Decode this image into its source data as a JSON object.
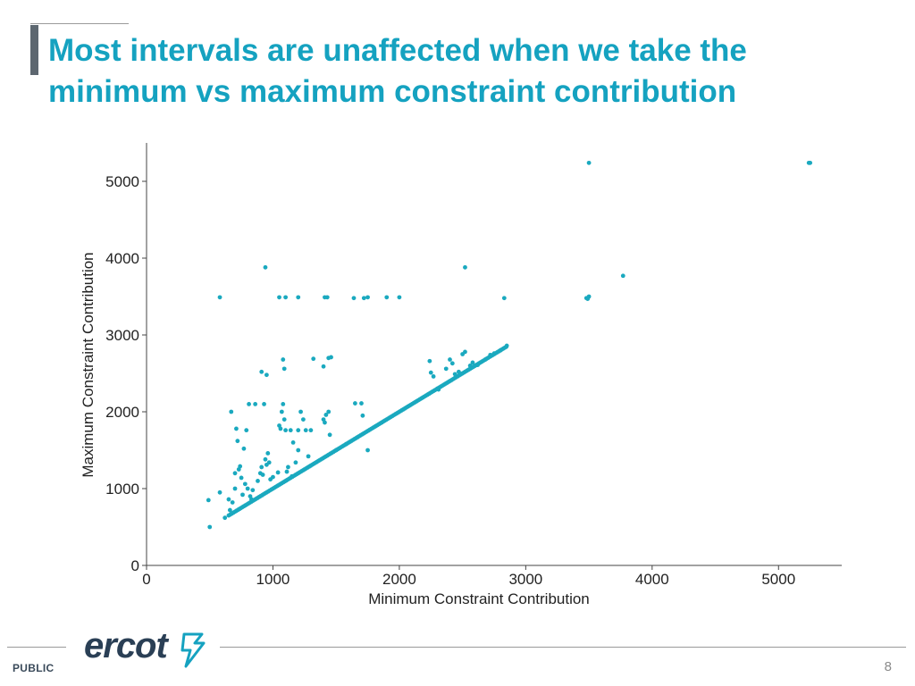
{
  "slide": {
    "title": "Most intervals are unaffected when we take the minimum vs maximum constraint contribution",
    "footer_label": "PUBLIC",
    "page_number": "8",
    "logo_text": "ercot",
    "accent_color": "#15a2c0",
    "logo_color": "#2a3f55"
  },
  "chart_data": {
    "type": "scatter",
    "title": "",
    "xlabel": "Minimum Constraint Contribution",
    "ylabel": "Maximum Constraint Contribution",
    "xlim": [
      0,
      5500
    ],
    "ylim": [
      0,
      5500
    ],
    "xticks": [
      0,
      1000,
      2000,
      3000,
      4000,
      5000
    ],
    "yticks": [
      0,
      1000,
      2000,
      3000,
      4000,
      5000
    ],
    "xtick_labels": [
      "0",
      "1000",
      "2000",
      "3000",
      "4000",
      "5000"
    ],
    "ytick_labels": [
      "0",
      "1000",
      "2000",
      "3000",
      "4000",
      "5000"
    ],
    "grid": false,
    "legend": "none",
    "marker_color": "#1aa9bf",
    "diagonal_segment": {
      "from": 650,
      "to": 2850
    },
    "points": [
      [
        500,
        500
      ],
      [
        490,
        850
      ],
      [
        580,
        950
      ],
      [
        620,
        620
      ],
      [
        650,
        860
      ],
      [
        660,
        720
      ],
      [
        670,
        2000
      ],
      [
        680,
        820
      ],
      [
        700,
        1200
      ],
      [
        700,
        1000
      ],
      [
        710,
        1780
      ],
      [
        720,
        1620
      ],
      [
        730,
        1250
      ],
      [
        740,
        1290
      ],
      [
        750,
        1140
      ],
      [
        760,
        920
      ],
      [
        770,
        1520
      ],
      [
        780,
        1060
      ],
      [
        790,
        1760
      ],
      [
        800,
        1000
      ],
      [
        810,
        2100
      ],
      [
        820,
        900
      ],
      [
        830,
        860
      ],
      [
        840,
        980
      ],
      [
        860,
        2100
      ],
      [
        880,
        1100
      ],
      [
        900,
        1200
      ],
      [
        910,
        1280
      ],
      [
        920,
        1180
      ],
      [
        930,
        2100
      ],
      [
        940,
        1380
      ],
      [
        950,
        1310
      ],
      [
        960,
        1460
      ],
      [
        970,
        1340
      ],
      [
        980,
        1120
      ],
      [
        1000,
        1150
      ],
      [
        1040,
        1210
      ],
      [
        1050,
        1820
      ],
      [
        1060,
        1780
      ],
      [
        1070,
        2000
      ],
      [
        1080,
        2100
      ],
      [
        1090,
        1900
      ],
      [
        1100,
        1760
      ],
      [
        1110,
        1220
      ],
      [
        1120,
        1280
      ],
      [
        1140,
        1760
      ],
      [
        1150,
        1160
      ],
      [
        1160,
        1600
      ],
      [
        1180,
        1340
      ],
      [
        1200,
        1760
      ],
      [
        1200,
        1500
      ],
      [
        1220,
        2000
      ],
      [
        1240,
        1900
      ],
      [
        1260,
        1760
      ],
      [
        1280,
        1420
      ],
      [
        1300,
        1760
      ],
      [
        1400,
        1900
      ],
      [
        1420,
        1960
      ],
      [
        1440,
        2000
      ],
      [
        1410,
        1860
      ],
      [
        1450,
        1700
      ],
      [
        1500,
        1500
      ],
      [
        1580,
        1580
      ],
      [
        1650,
        2110
      ],
      [
        1700,
        2110
      ],
      [
        1710,
        1950
      ],
      [
        1750,
        1500
      ],
      [
        910,
        2520
      ],
      [
        950,
        2480
      ],
      [
        1080,
        2680
      ],
      [
        1090,
        2560
      ],
      [
        1320,
        2690
      ],
      [
        1400,
        2590
      ],
      [
        1440,
        2700
      ],
      [
        1460,
        2710
      ],
      [
        2300,
        2300
      ],
      [
        2310,
        2290
      ],
      [
        2240,
        2660
      ],
      [
        2250,
        2510
      ],
      [
        2270,
        2460
      ],
      [
        2370,
        2560
      ],
      [
        2400,
        2680
      ],
      [
        2420,
        2630
      ],
      [
        2440,
        2490
      ],
      [
        2470,
        2520
      ],
      [
        2500,
        2750
      ],
      [
        2520,
        2780
      ],
      [
        2560,
        2600
      ],
      [
        2580,
        2640
      ],
      [
        2620,
        2610
      ],
      [
        2680,
        2680
      ],
      [
        2720,
        2740
      ],
      [
        2750,
        2760
      ],
      [
        2800,
        2800
      ],
      [
        2850,
        2860
      ],
      [
        580,
        3490
      ],
      [
        1050,
        3490
      ],
      [
        1100,
        3490
      ],
      [
        1200,
        3490
      ],
      [
        1410,
        3490
      ],
      [
        1430,
        3490
      ],
      [
        1640,
        3480
      ],
      [
        1720,
        3480
      ],
      [
        1750,
        3490
      ],
      [
        1900,
        3490
      ],
      [
        2000,
        3490
      ],
      [
        2830,
        3480
      ],
      [
        3480,
        3480
      ],
      [
        3500,
        3500
      ],
      [
        3490,
        3470
      ],
      [
        940,
        3880
      ],
      [
        2520,
        3880
      ],
      [
        3770,
        3770
      ],
      [
        3500,
        5240
      ],
      [
        5240,
        5240
      ],
      [
        5250,
        5240
      ]
    ]
  }
}
